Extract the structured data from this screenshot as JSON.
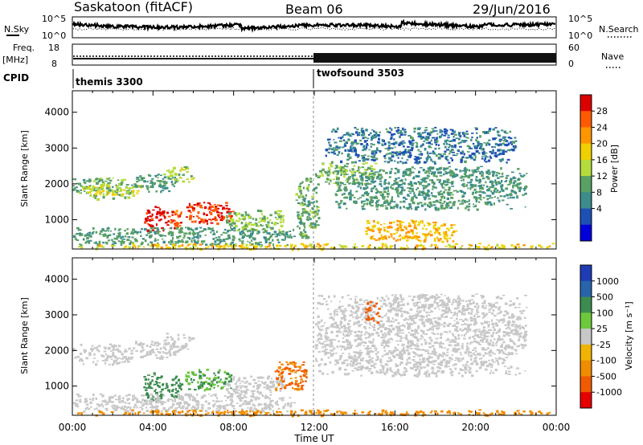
{
  "header": {
    "station": "Saskatoon (fitACF)",
    "beam": "Beam 06",
    "date": "29/Jun/2016"
  },
  "top_panels": {
    "nsky_label": "N.Sky",
    "nsky_ticks": [
      "10^5",
      "10^0"
    ],
    "nsearch_label": "N.Search",
    "nsearch_ticks": [
      "10^5",
      "10^0"
    ],
    "freq_label": "Freq.",
    "freq_unit": "[MHz]",
    "freq_ticks": [
      "18",
      "8"
    ],
    "nave_label": "Nave",
    "nave_ticks": [
      "60",
      "0"
    ],
    "cpid_label": "CPID",
    "cpid_segments": [
      {
        "name": "themis 3300",
        "start": "00:00"
      },
      {
        "name": "twofsound 3503",
        "start": "12:00"
      }
    ]
  },
  "power_colorbar": {
    "title": "Power [dB]",
    "ticks": [
      "28",
      "24",
      "20",
      "16",
      "12",
      "8",
      "4"
    ],
    "colors": [
      "#dd0000",
      "#ff5a00",
      "#ff9600",
      "#f0d000",
      "#b4dc3c",
      "#5aa064",
      "#3c8c8c",
      "#1e50b4",
      "#0000dc"
    ]
  },
  "velocity_colorbar": {
    "title": "Velocity [m s⁻¹]",
    "ticks": [
      "1000",
      "500",
      "100",
      "25",
      "-25",
      "-100",
      "-500",
      "-1000"
    ],
    "colors": [
      "#1e3cb4",
      "#2864aa",
      "#3c8c50",
      "#6ec83c",
      "#c8c8c8",
      "#f0b400",
      "#f08c00",
      "#f05a00",
      "#e60000"
    ]
  },
  "chart_data": [
    {
      "type": "heatmap",
      "panel": "power",
      "title": "",
      "xlabel": "Time UT",
      "ylabel": "Slant Range [km]",
      "x_ticks": [
        "00:00",
        "04:00",
        "08:00",
        "12:00",
        "16:00",
        "20:00",
        "00:00"
      ],
      "y_ticks": [
        1000,
        2000,
        3000,
        4000
      ],
      "ylim": [
        180,
        4600
      ],
      "xlim": [
        0,
        24
      ],
      "unit": "dB",
      "regions": [
        {
          "t": [
            0.0,
            3.0
          ],
          "r": [
            1600,
            2200
          ],
          "value": 8
        },
        {
          "t": [
            0.5,
            3.5
          ],
          "r": [
            1700,
            2000
          ],
          "value": 14
        },
        {
          "t": [
            3.0,
            5.2
          ],
          "r": [
            1800,
            2300
          ],
          "value": 6
        },
        {
          "t": [
            4.5,
            6.0
          ],
          "r": [
            2050,
            2500
          ],
          "value": 12
        },
        {
          "t": [
            3.5,
            4.6
          ],
          "r": [
            600,
            1400
          ],
          "value": 28
        },
        {
          "t": [
            4.6,
            5.4
          ],
          "r": [
            700,
            1300
          ],
          "value": 24
        },
        {
          "t": [
            5.5,
            7.9
          ],
          "r": [
            900,
            1500
          ],
          "value": 26
        },
        {
          "t": [
            7.5,
            10.5
          ],
          "r": [
            700,
            1300
          ],
          "value": 10
        },
        {
          "t": [
            0.0,
            11.0
          ],
          "r": [
            300,
            800
          ],
          "value": 7
        },
        {
          "t": [
            11.0,
            12.2
          ],
          "r": [
            500,
            2200
          ],
          "value": 8
        },
        {
          "t": [
            12.0,
            15.0
          ],
          "r": [
            2000,
            2600
          ],
          "value": 10
        },
        {
          "t": [
            13.0,
            22.5
          ],
          "r": [
            1300,
            2500
          ],
          "value": 6
        },
        {
          "t": [
            12.5,
            22.0
          ],
          "r": [
            2600,
            3600
          ],
          "value": 4
        },
        {
          "t": [
            14.5,
            19.0
          ],
          "r": [
            400,
            1000
          ],
          "value": 18
        },
        {
          "t": [
            0.0,
            24.0
          ],
          "r": [
            200,
            350
          ],
          "value": 16
        }
      ]
    },
    {
      "type": "heatmap",
      "panel": "velocity",
      "title": "",
      "xlabel": "Time UT",
      "ylabel": "Slant Range [km]",
      "x_ticks": [
        "00:00",
        "04:00",
        "08:00",
        "12:00",
        "16:00",
        "20:00",
        "00:00"
      ],
      "y_ticks": [
        1000,
        2000,
        3000,
        4000
      ],
      "ylim": [
        180,
        4600
      ],
      "xlim": [
        0,
        24
      ],
      "unit": "m s-1",
      "regions": [
        {
          "t": [
            0.0,
            3.0
          ],
          "r": [
            1600,
            2200
          ],
          "value": 0
        },
        {
          "t": [
            3.0,
            5.2
          ],
          "r": [
            1800,
            2300
          ],
          "value": 0
        },
        {
          "t": [
            4.5,
            6.0
          ],
          "r": [
            2050,
            2500
          ],
          "value": 0
        },
        {
          "t": [
            3.5,
            4.6
          ],
          "r": [
            600,
            1400
          ],
          "value": 250
        },
        {
          "t": [
            4.6,
            5.4
          ],
          "r": [
            700,
            1300
          ],
          "value": 80
        },
        {
          "t": [
            5.5,
            7.9
          ],
          "r": [
            900,
            1500
          ],
          "value": 60
        },
        {
          "t": [
            7.5,
            10.5
          ],
          "r": [
            700,
            1300
          ],
          "value": 0
        },
        {
          "t": [
            10.0,
            11.6
          ],
          "r": [
            900,
            1700
          ],
          "value": -300
        },
        {
          "t": [
            0.0,
            11.0
          ],
          "r": [
            300,
            800
          ],
          "value": 0
        },
        {
          "t": [
            12.0,
            22.5
          ],
          "r": [
            1300,
            3600
          ],
          "value": 0
        },
        {
          "t": [
            14.5,
            15.2
          ],
          "r": [
            2800,
            3400
          ],
          "value": -400
        },
        {
          "t": [
            0.0,
            24.0
          ],
          "r": [
            200,
            350
          ],
          "value": -150
        }
      ]
    }
  ]
}
